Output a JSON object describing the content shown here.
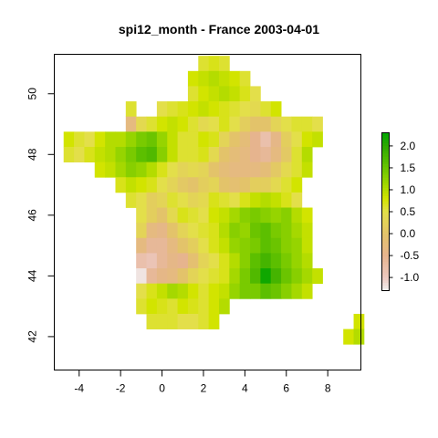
{
  "title": "spi12_month - France 2003-04-01",
  "chart_data": {
    "type": "heatmap",
    "title": "spi12_month - France 2003-04-01",
    "xlabel": "",
    "ylabel": "",
    "xlim": [
      -5.2,
      9.6
    ],
    "ylim": [
      40.9,
      51.3
    ],
    "x_ticks": [
      -4,
      -2,
      0,
      2,
      4,
      6,
      8
    ],
    "y_ticks": [
      42,
      44,
      46,
      48,
      50
    ],
    "x_tick_labels": [
      "-4",
      "-2",
      "0",
      "2",
      "4",
      "6",
      "8"
    ],
    "y_tick_labels": [
      "42",
      "44",
      "46",
      "48",
      "50"
    ],
    "grid": false,
    "legend": {
      "position": "right",
      "ticks": [
        2.0,
        1.5,
        1.0,
        0.5,
        0.0,
        -0.5,
        -1.0
      ],
      "labels": [
        "2.0",
        "1.5",
        "1.0",
        "0.5",
        "0.0",
        "-0.5",
        "-1.0"
      ],
      "range": [
        -1.3,
        2.3
      ]
    },
    "colormap": [
      {
        "v": -1.3,
        "c": "#f2f2f2"
      },
      {
        "v": -1.0,
        "c": "#ecc8c0"
      },
      {
        "v": -0.5,
        "c": "#e6b48e"
      },
      {
        "v": 0.0,
        "c": "#e3c36a"
      },
      {
        "v": 0.5,
        "c": "#e3df4a"
      },
      {
        "v": 0.8,
        "c": "#d2e400"
      },
      {
        "v": 1.2,
        "c": "#96d400"
      },
      {
        "v": 1.6,
        "c": "#5cbf00"
      },
      {
        "v": 2.0,
        "c": "#2ea800"
      },
      {
        "v": 2.3,
        "c": "#00a600"
      }
    ],
    "grid_spec": {
      "lon0": -4.75,
      "lat0": 42.25,
      "cell": 0.5
    },
    "rows": [
      {
        "lat": 51.0,
        "cells": [
          [
            2.0,
            0.6
          ],
          [
            2.5,
            0.7
          ],
          [
            3.0,
            0.6
          ]
        ]
      },
      {
        "lat": 50.5,
        "cells": [
          [
            1.5,
            0.8
          ],
          [
            2.0,
            0.9
          ],
          [
            2.5,
            1.0
          ],
          [
            3.0,
            0.9
          ],
          [
            3.5,
            0.8
          ],
          [
            4.0,
            0.6
          ]
        ]
      },
      {
        "lat": 50.0,
        "cells": [
          [
            1.5,
            0.6
          ],
          [
            2.0,
            0.8
          ],
          [
            2.5,
            0.9
          ],
          [
            3.0,
            1.0
          ],
          [
            3.5,
            0.9
          ],
          [
            4.0,
            0.7
          ],
          [
            4.5,
            0.5
          ]
        ]
      },
      {
        "lat": 49.5,
        "cells": [
          [
            -1.5,
            0.6
          ],
          [
            0.0,
            0.5
          ],
          [
            0.5,
            0.6
          ],
          [
            1.0,
            0.7
          ],
          [
            1.5,
            0.8
          ],
          [
            2.0,
            0.9
          ],
          [
            2.5,
            0.8
          ],
          [
            3.0,
            0.7
          ],
          [
            3.5,
            0.6
          ],
          [
            4.0,
            0.5
          ],
          [
            4.5,
            0.4
          ],
          [
            5.0,
            0.6
          ],
          [
            5.5,
            0.8
          ]
        ]
      },
      {
        "lat": 49.0,
        "cells": [
          [
            -1.5,
            -0.3
          ],
          [
            -1.0,
            0.4
          ],
          [
            -0.5,
            0.6
          ],
          [
            0.0,
            0.8
          ],
          [
            0.5,
            0.9
          ],
          [
            1.0,
            0.8
          ],
          [
            1.5,
            0.6
          ],
          [
            2.0,
            0.4
          ],
          [
            2.5,
            0.5
          ],
          [
            3.0,
            0.7
          ],
          [
            3.5,
            0.5
          ],
          [
            4.0,
            0.2
          ],
          [
            4.5,
            0.0
          ],
          [
            5.0,
            0.0
          ],
          [
            5.5,
            0.3
          ],
          [
            6.0,
            0.5
          ],
          [
            6.5,
            0.6
          ],
          [
            7.0,
            0.6
          ],
          [
            7.5,
            0.5
          ]
        ]
      },
      {
        "lat": 48.5,
        "cells": [
          [
            -4.5,
            0.8
          ],
          [
            -4.0,
            0.6
          ],
          [
            -3.5,
            0.5
          ],
          [
            -3.0,
            0.8
          ],
          [
            -2.5,
            1.0
          ],
          [
            -2.0,
            1.0
          ],
          [
            -1.5,
            1.2
          ],
          [
            -1.0,
            1.4
          ],
          [
            -0.5,
            1.5
          ],
          [
            0.0,
            1.2
          ],
          [
            0.5,
            0.9
          ],
          [
            1.0,
            0.6
          ],
          [
            1.5,
            0.6
          ],
          [
            2.0,
            0.8
          ],
          [
            2.5,
            0.7
          ],
          [
            3.0,
            0.3
          ],
          [
            3.5,
            0.0
          ],
          [
            4.0,
            -0.2
          ],
          [
            4.5,
            -0.5
          ],
          [
            5.0,
            -0.8
          ],
          [
            5.5,
            -0.4
          ],
          [
            6.0,
            0.2
          ],
          [
            6.5,
            0.5
          ],
          [
            7.0,
            0.8
          ],
          [
            7.5,
            0.9
          ]
        ]
      },
      {
        "lat": 48.0,
        "cells": [
          [
            -4.5,
            0.6
          ],
          [
            -4.0,
            0.5
          ],
          [
            -3.5,
            0.7
          ],
          [
            -3.0,
            0.9
          ],
          [
            -2.5,
            1.0
          ],
          [
            -2.0,
            1.2
          ],
          [
            -1.5,
            1.4
          ],
          [
            -1.0,
            1.6
          ],
          [
            -0.5,
            1.7
          ],
          [
            0.0,
            1.3
          ],
          [
            0.5,
            0.9
          ],
          [
            1.0,
            0.6
          ],
          [
            1.5,
            0.6
          ],
          [
            2.0,
            0.7
          ],
          [
            2.5,
            0.4
          ],
          [
            3.0,
            0.0
          ],
          [
            3.5,
            -0.2
          ],
          [
            4.0,
            -0.3
          ],
          [
            4.5,
            -0.5
          ],
          [
            5.0,
            -0.6
          ],
          [
            5.5,
            -0.3
          ],
          [
            6.0,
            0.1
          ],
          [
            6.5,
            0.6
          ],
          [
            7.0,
            1.0
          ]
        ]
      },
      {
        "lat": 47.5,
        "cells": [
          [
            -3.0,
            0.8
          ],
          [
            -2.5,
            0.9
          ],
          [
            -2.0,
            1.1
          ],
          [
            -1.5,
            1.3
          ],
          [
            -1.0,
            1.2
          ],
          [
            -0.5,
            1.0
          ],
          [
            0.0,
            0.7
          ],
          [
            0.5,
            0.5
          ],
          [
            1.0,
            0.3
          ],
          [
            1.5,
            0.4
          ],
          [
            2.0,
            0.3
          ],
          [
            2.5,
            0.0
          ],
          [
            3.0,
            -0.2
          ],
          [
            3.5,
            -0.3
          ],
          [
            4.0,
            -0.3
          ],
          [
            4.5,
            -0.3
          ],
          [
            5.0,
            -0.2
          ],
          [
            5.5,
            0.1
          ],
          [
            6.0,
            0.4
          ],
          [
            6.5,
            0.6
          ],
          [
            7.0,
            0.9
          ]
        ]
      },
      {
        "lat": 47.0,
        "cells": [
          [
            -2.0,
            0.7
          ],
          [
            -1.5,
            0.9
          ],
          [
            -1.0,
            0.8
          ],
          [
            -0.5,
            0.7
          ],
          [
            0.0,
            0.5
          ],
          [
            0.5,
            0.3
          ],
          [
            1.0,
            0.1
          ],
          [
            1.5,
            0.0
          ],
          [
            2.0,
            0.2
          ],
          [
            2.5,
            0.3
          ],
          [
            3.0,
            0.0
          ],
          [
            3.5,
            -0.1
          ],
          [
            4.0,
            0.0
          ],
          [
            4.5,
            0.2
          ],
          [
            5.0,
            0.2
          ],
          [
            5.5,
            0.4
          ],
          [
            6.0,
            0.6
          ],
          [
            6.5,
            0.8
          ]
        ]
      },
      {
        "lat": 46.5,
        "cells": [
          [
            -1.5,
            0.6
          ],
          [
            -1.0,
            0.5
          ],
          [
            -0.5,
            0.2
          ],
          [
            0.0,
            0.3
          ],
          [
            0.5,
            0.6
          ],
          [
            1.0,
            0.5
          ],
          [
            1.5,
            0.3
          ],
          [
            2.0,
            0.4
          ],
          [
            2.5,
            0.7
          ],
          [
            3.0,
            0.6
          ],
          [
            3.5,
            0.5
          ],
          [
            4.0,
            0.7
          ],
          [
            4.5,
            0.9
          ],
          [
            5.0,
            1.0
          ],
          [
            5.5,
            0.9
          ],
          [
            6.0,
            0.7
          ],
          [
            6.5,
            0.5
          ]
        ]
      },
      {
        "lat": 46.0,
        "cells": [
          [
            -1.0,
            0.5
          ],
          [
            -0.5,
            0.2
          ],
          [
            0.0,
            0.0
          ],
          [
            0.5,
            0.4
          ],
          [
            1.0,
            0.7
          ],
          [
            1.5,
            0.6
          ],
          [
            2.0,
            0.5
          ],
          [
            2.5,
            0.8
          ],
          [
            3.0,
            0.9
          ],
          [
            3.5,
            1.1
          ],
          [
            4.0,
            1.3
          ],
          [
            4.5,
            1.4
          ],
          [
            5.0,
            1.3
          ],
          [
            5.5,
            1.2
          ],
          [
            6.0,
            1.3
          ],
          [
            6.5,
            1.0
          ],
          [
            7.0,
            0.8
          ]
        ]
      },
      {
        "lat": 45.5,
        "cells": [
          [
            -1.0,
            0.3
          ],
          [
            -0.5,
            -0.3
          ],
          [
            0.0,
            -0.4
          ],
          [
            0.5,
            0.0
          ],
          [
            1.0,
            0.3
          ],
          [
            1.5,
            0.5
          ],
          [
            2.0,
            0.6
          ],
          [
            2.5,
            0.7
          ],
          [
            3.0,
            1.0
          ],
          [
            3.5,
            1.3
          ],
          [
            4.0,
            1.2
          ],
          [
            4.5,
            1.5
          ],
          [
            5.0,
            1.6
          ],
          [
            5.5,
            1.4
          ],
          [
            6.0,
            1.3
          ],
          [
            6.5,
            1.1
          ],
          [
            7.0,
            0.9
          ]
        ]
      },
      {
        "lat": 45.0,
        "cells": [
          [
            -1.0,
            -0.3
          ],
          [
            -0.5,
            -0.6
          ],
          [
            0.0,
            -0.6
          ],
          [
            0.5,
            -0.3
          ],
          [
            1.0,
            0.0
          ],
          [
            1.5,
            0.2
          ],
          [
            2.0,
            0.5
          ],
          [
            2.5,
            0.7
          ],
          [
            3.0,
            0.9
          ],
          [
            3.5,
            1.2
          ],
          [
            4.0,
            1.3
          ],
          [
            4.5,
            1.4
          ],
          [
            5.0,
            1.6
          ],
          [
            5.5,
            1.5
          ],
          [
            6.0,
            1.3
          ],
          [
            6.5,
            1.2
          ],
          [
            7.0,
            0.9
          ]
        ]
      },
      {
        "lat": 44.5,
        "cells": [
          [
            -1.0,
            -0.8
          ],
          [
            -0.5,
            -0.9
          ],
          [
            0.0,
            -0.6
          ],
          [
            0.5,
            -0.4
          ],
          [
            1.0,
            -0.5
          ],
          [
            1.5,
            -0.1
          ],
          [
            2.0,
            0.3
          ],
          [
            2.5,
            0.5
          ],
          [
            3.0,
            0.7
          ],
          [
            3.5,
            1.0
          ],
          [
            4.0,
            1.3
          ],
          [
            4.5,
            1.6
          ],
          [
            5.0,
            1.8
          ],
          [
            5.5,
            1.6
          ],
          [
            6.0,
            1.4
          ],
          [
            6.5,
            1.2
          ],
          [
            7.0,
            1.0
          ]
        ]
      },
      {
        "lat": 44.0,
        "cells": [
          [
            -1.0,
            -1.2
          ],
          [
            -0.5,
            -0.6
          ],
          [
            0.0,
            -0.4
          ],
          [
            0.5,
            -0.3
          ],
          [
            1.0,
            0.0
          ],
          [
            1.5,
            0.3
          ],
          [
            2.0,
            0.5
          ],
          [
            2.5,
            0.6
          ],
          [
            3.0,
            0.7
          ],
          [
            3.5,
            1.1
          ],
          [
            4.0,
            1.4
          ],
          [
            4.5,
            1.7
          ],
          [
            5.0,
            2.2
          ],
          [
            5.5,
            1.8
          ],
          [
            6.0,
            1.5
          ],
          [
            6.5,
            1.3
          ],
          [
            7.0,
            1.1
          ],
          [
            7.5,
            0.9
          ]
        ]
      },
      {
        "lat": 43.5,
        "cells": [
          [
            -1.0,
            0.5
          ],
          [
            -0.5,
            0.7
          ],
          [
            0.0,
            0.9
          ],
          [
            0.5,
            1.1
          ],
          [
            1.0,
            1.0
          ],
          [
            1.5,
            0.8
          ],
          [
            2.0,
            0.6
          ],
          [
            2.5,
            0.8
          ],
          [
            3.0,
            0.9
          ],
          [
            3.5,
            1.2
          ],
          [
            4.0,
            1.4
          ],
          [
            4.5,
            1.4
          ],
          [
            5.0,
            1.6
          ],
          [
            5.5,
            1.5
          ],
          [
            6.0,
            1.3
          ],
          [
            6.5,
            1.1
          ],
          [
            7.0,
            0.9
          ]
        ]
      },
      {
        "lat": 43.0,
        "cells": [
          [
            -1.0,
            0.6
          ],
          [
            -0.5,
            0.8
          ],
          [
            0.0,
            0.7
          ],
          [
            0.5,
            0.6
          ],
          [
            1.0,
            0.8
          ],
          [
            1.5,
            0.7
          ],
          [
            2.0,
            0.6
          ],
          [
            2.5,
            0.8
          ],
          [
            3.0,
            1.0
          ]
        ]
      },
      {
        "lat": 42.5,
        "cells": [
          [
            -0.5,
            0.6
          ],
          [
            0.0,
            0.6
          ],
          [
            0.5,
            0.6
          ],
          [
            1.0,
            0.5
          ],
          [
            1.5,
            0.5
          ],
          [
            2.0,
            0.6
          ],
          [
            2.5,
            0.8
          ],
          [
            9.5,
            0.8
          ]
        ]
      },
      {
        "lat": 42.0,
        "cells": [
          [
            9.0,
            0.8
          ],
          [
            9.5,
            1.0
          ]
        ]
      }
    ]
  }
}
